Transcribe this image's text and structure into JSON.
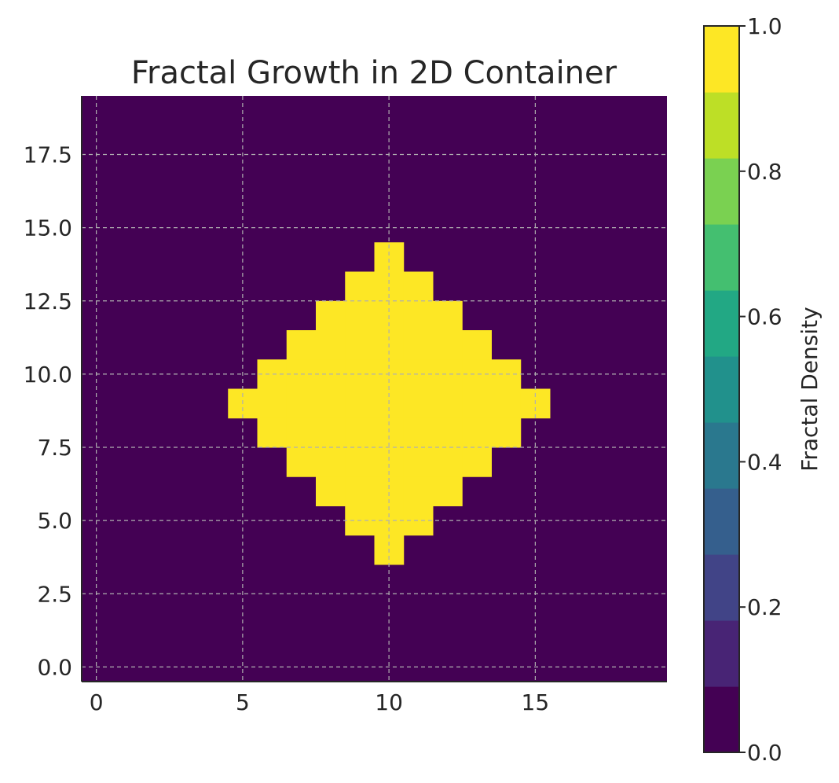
{
  "chart_data": {
    "type": "heatmap",
    "title": "Fractal Growth in 2D Container",
    "grid_size": [
      20,
      20
    ],
    "x_ticks": [
      0,
      5,
      10,
      15
    ],
    "x_tick_labels": [
      "0",
      "5",
      "10",
      "15"
    ],
    "y_ticks": [
      0,
      2.5,
      5,
      7.5,
      10,
      12.5,
      15,
      17.5
    ],
    "y_tick_labels": [
      "0.0",
      "2.5",
      "5.0",
      "7.5",
      "10.0",
      "12.5",
      "15.0",
      "17.5"
    ],
    "xlim": [
      -0.5,
      19.5
    ],
    "ylim": [
      19.5,
      -0.5
    ],
    "grid": true,
    "colormap": "viridis",
    "vmin": 0.0,
    "vmax": 1.0,
    "colorbar": {
      "label": "Fractal Density",
      "ticks": [
        0.0,
        0.2,
        0.4,
        0.6,
        0.8,
        1.0
      ],
      "tick_labels": [
        "0.0",
        "0.2",
        "0.4",
        "0.6",
        "0.8",
        "1.0"
      ],
      "position": "right"
    },
    "center": [
      10,
      10
    ],
    "radius": 5,
    "fill_value": 1.0,
    "background_value": 0.0,
    "low_color": "#440154",
    "high_color": "#fde725"
  }
}
